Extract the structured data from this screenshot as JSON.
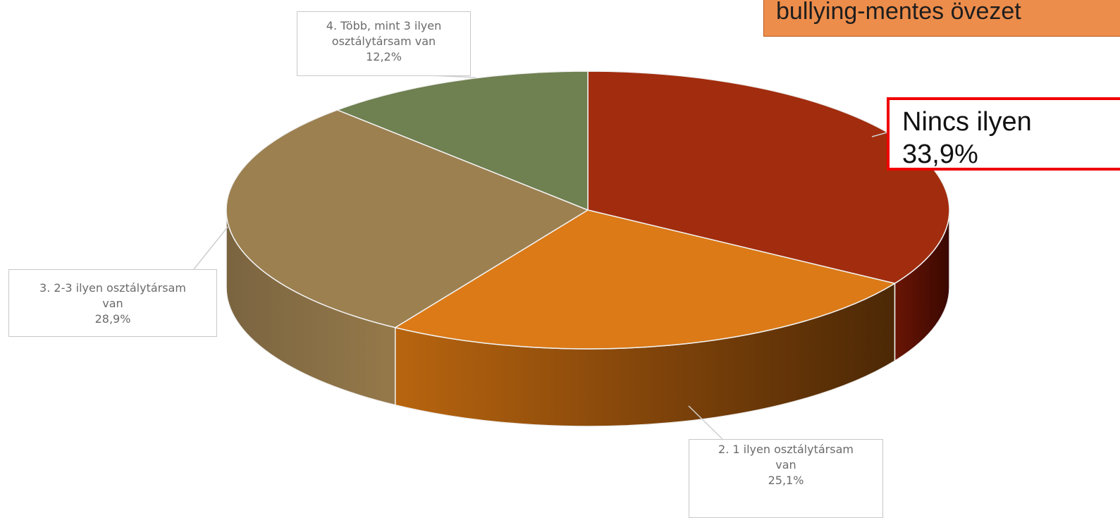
{
  "banner": {
    "text": "bullying-mentes övezet",
    "color": "#ed8d4b"
  },
  "highlight": {
    "name": "Nincs ilyen",
    "value": "33,9%",
    "border_color": "#f00000"
  },
  "chart_data": {
    "type": "pie",
    "style": "3d",
    "categories": [
      "Nincs ilyen",
      "2. 1 ilyen osztálytársam van",
      "3. 2-3 ilyen osztálytársam van",
      "4. Több, mint 3 ilyen osztálytársam van"
    ],
    "values": [
      33.9,
      25.1,
      28.9,
      12.2
    ],
    "colors": [
      "#a12d0e",
      "#db7a17",
      "#9c8050",
      "#6f8051"
    ],
    "labels": [
      {
        "lines": [
          "2. 1 ilyen osztálytársam",
          "van",
          "25,1%"
        ]
      },
      {
        "lines": [
          "3. 2-3 ilyen osztálytársam",
          "van",
          "28,9%"
        ]
      },
      {
        "lines": [
          "4. Több, mint 3 ilyen",
          "osztálytársam van",
          "12,2%"
        ]
      }
    ],
    "legend": "none"
  }
}
